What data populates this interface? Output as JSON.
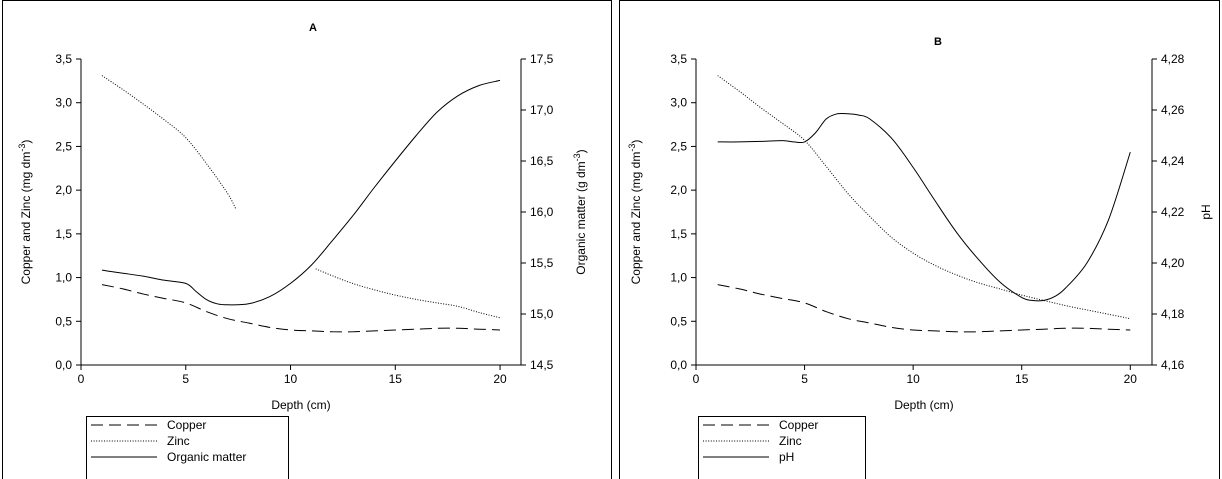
{
  "chart_data": [
    {
      "type": "line",
      "panel_label": "A",
      "title": "",
      "xlabel": "Depth (cm)",
      "ylabel_left": "Copper and Zinc (mg dm-3)",
      "ylabel_right": "Organic matter (g dm-3)",
      "xlim": [
        0,
        21
      ],
      "ylim_left": [
        0,
        3.5
      ],
      "ylim_right": [
        14.5,
        17.5
      ],
      "x_ticks": [
        "0",
        "5",
        "10",
        "15",
        "20"
      ],
      "y_left_ticks": [
        "0,0",
        "0,5",
        "1,0",
        "1,5",
        "2,0",
        "2,5",
        "3,0",
        "3,5"
      ],
      "y_right_ticks": [
        "14,5",
        "15,0",
        "15,5",
        "16,0",
        "16,5",
        "17,0",
        "17,5"
      ],
      "grid": false,
      "legend_position": "below-left",
      "series": [
        {
          "name": "Copper",
          "axis": "left",
          "style": "dashed",
          "x": [
            1,
            2,
            3,
            4,
            5,
            6,
            7,
            8,
            9,
            10,
            11,
            12,
            13,
            14,
            15,
            16,
            17,
            18,
            19,
            20
          ],
          "y": [
            0.92,
            0.87,
            0.81,
            0.76,
            0.71,
            0.61,
            0.53,
            0.48,
            0.43,
            0.4,
            0.39,
            0.38,
            0.38,
            0.39,
            0.4,
            0.41,
            0.42,
            0.42,
            0.41,
            0.4
          ]
        },
        {
          "name": "Zinc",
          "axis": "left",
          "style": "dotted",
          "x": [
            1,
            2,
            3,
            4,
            5,
            6,
            7,
            7.4,
            null,
            11.2,
            12,
            13,
            14,
            15,
            16,
            17,
            18,
            19,
            20
          ],
          "y": [
            3.31,
            3.15,
            2.98,
            2.8,
            2.6,
            2.3,
            1.96,
            1.78,
            null,
            1.1,
            1.02,
            0.93,
            0.86,
            0.8,
            0.75,
            0.71,
            0.67,
            0.6,
            0.54
          ]
        },
        {
          "name": "Organic matter",
          "axis": "right",
          "style": "solid",
          "x": [
            1,
            2,
            3,
            4,
            5,
            5.5,
            6,
            6.5,
            7,
            8,
            9,
            10,
            11,
            12,
            13,
            14,
            15,
            16,
            17,
            18,
            19,
            20
          ],
          "y": [
            15.43,
            15.4,
            15.37,
            15.33,
            15.3,
            15.22,
            15.14,
            15.1,
            15.09,
            15.1,
            15.17,
            15.3,
            15.48,
            15.72,
            15.97,
            16.24,
            16.5,
            16.75,
            16.98,
            17.14,
            17.24,
            17.29
          ]
        }
      ]
    },
    {
      "type": "line",
      "panel_label": "B",
      "title": "",
      "xlabel": "Depth (cm)",
      "ylabel_left": "Copper and Zinc (mg dm-3)",
      "ylabel_right": "pH",
      "xlim": [
        0,
        21
      ],
      "ylim_left": [
        0,
        3.5
      ],
      "ylim_right": [
        4.16,
        4.28
      ],
      "x_ticks": [
        "0",
        "5",
        "10",
        "15",
        "20"
      ],
      "y_left_ticks": [
        "0,0",
        "0,5",
        "1,0",
        "1,5",
        "2,0",
        "2,5",
        "3,0",
        "3,5"
      ],
      "y_right_ticks": [
        "4,16",
        "4,18",
        "4,20",
        "4,22",
        "4,24",
        "4,26",
        "4,28"
      ],
      "grid": false,
      "legend_position": "below-left",
      "series": [
        {
          "name": "Copper",
          "axis": "left",
          "style": "dashed",
          "x": [
            1,
            2,
            3,
            4,
            5,
            6,
            7,
            8,
            9,
            10,
            11,
            12,
            13,
            14,
            15,
            16,
            17,
            18,
            19,
            20
          ],
          "y": [
            0.92,
            0.87,
            0.81,
            0.76,
            0.71,
            0.61,
            0.53,
            0.48,
            0.43,
            0.4,
            0.39,
            0.38,
            0.38,
            0.39,
            0.4,
            0.41,
            0.42,
            0.42,
            0.41,
            0.4
          ]
        },
        {
          "name": "Zinc",
          "axis": "left",
          "style": "dotted",
          "x": [
            1,
            2,
            3,
            4,
            5,
            6,
            7,
            8,
            9,
            10,
            11,
            12,
            13,
            14,
            15,
            16,
            17,
            18,
            19,
            20
          ],
          "y": [
            3.31,
            3.13,
            2.94,
            2.76,
            2.57,
            2.27,
            1.96,
            1.7,
            1.46,
            1.28,
            1.14,
            1.03,
            0.94,
            0.87,
            0.8,
            0.74,
            0.68,
            0.63,
            0.58,
            0.53
          ]
        },
        {
          "name": "pH",
          "axis": "right",
          "style": "solid",
          "x": [
            1,
            2,
            3,
            4,
            4.5,
            5,
            5.5,
            6,
            6.5,
            7,
            7.5,
            8,
            9,
            10,
            11,
            12,
            13,
            14,
            15,
            15.5,
            16,
            16.5,
            17,
            18,
            19,
            20
          ],
          "y": [
            4.2475,
            4.2475,
            4.2477,
            4.248,
            4.2475,
            4.2475,
            4.251,
            4.2565,
            4.2585,
            4.2585,
            4.258,
            4.2565,
            4.249,
            4.2375,
            4.2245,
            4.212,
            4.2015,
            4.1925,
            4.1865,
            4.1853,
            4.1853,
            4.1868,
            4.19,
            4.2,
            4.217,
            4.2435
          ]
        }
      ]
    }
  ]
}
